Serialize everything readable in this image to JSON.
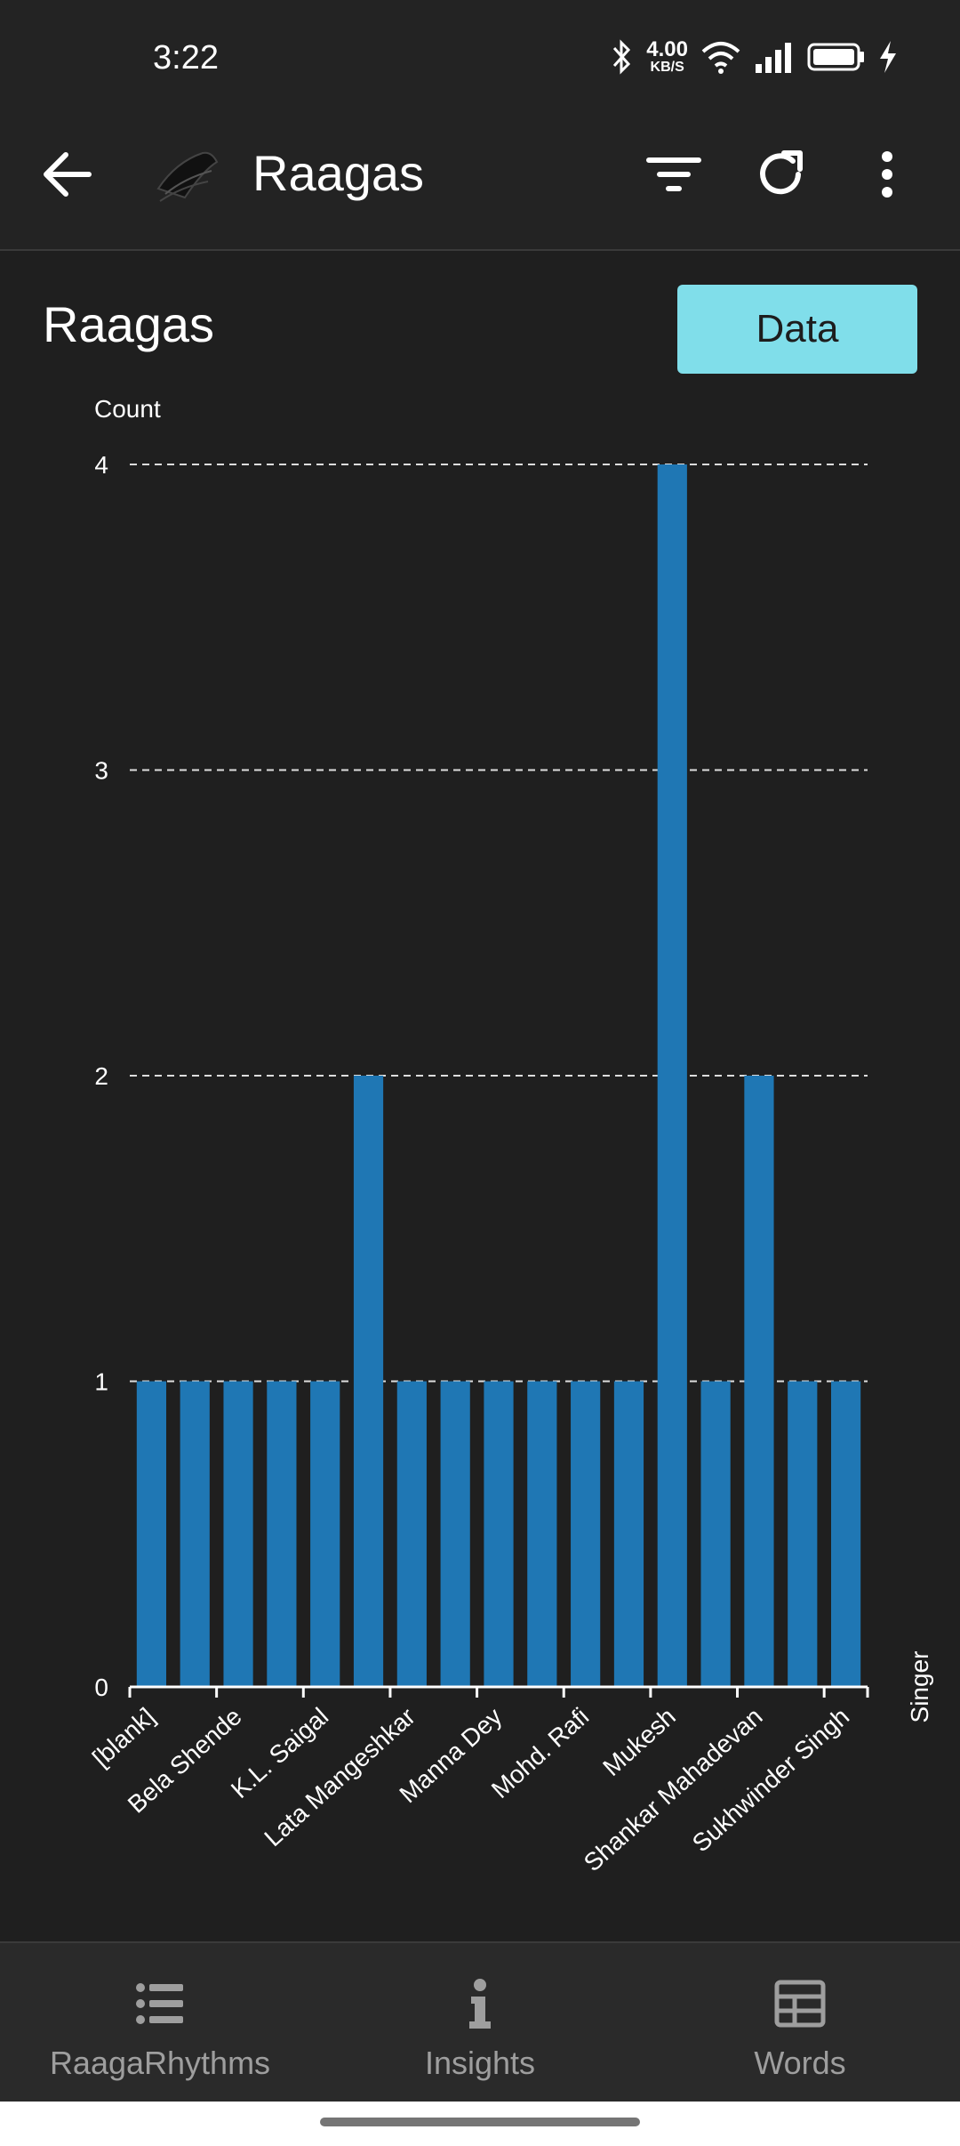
{
  "status_bar": {
    "time": "3:22",
    "net_speed_value": "4.00",
    "net_speed_unit": "KB/S",
    "icons": [
      "bluetooth-icon",
      "wifi-icon",
      "signal-icon",
      "battery-icon",
      "charging-icon"
    ]
  },
  "app_bar": {
    "title": "Raagas",
    "actions": [
      "filter-icon",
      "refresh-icon",
      "more-vert-icon"
    ]
  },
  "content": {
    "title": "Raagas",
    "data_button": "Data"
  },
  "chart_data": {
    "type": "bar",
    "categories": [
      "[blank]",
      "Bela Shende",
      "",
      "K.L. Saigal",
      "",
      "Lata Mangeshkar",
      "",
      "Manna Dey",
      "",
      "Mohd. Rafi",
      "",
      "Mukesh",
      "",
      "Shankar Mahadevan",
      "",
      "Sukhwinder Singh",
      ""
    ],
    "values": [
      1,
      1,
      1,
      1,
      1,
      2,
      1,
      1,
      1,
      1,
      1,
      1,
      4,
      1,
      2,
      1,
      1
    ],
    "tick_labels": [
      "[blank]",
      "Bela Shende",
      "K.L. Saigal",
      "Lata Mangeshkar",
      "Manna Dey",
      "Mohd. Rafi",
      "Mukesh",
      "Shankar Mahadevan",
      "Sukhwinder Singh"
    ],
    "ylabel": "Count",
    "xlabel": "Singer",
    "ylim": [
      0,
      4
    ],
    "yticks": [
      0,
      1,
      2,
      3,
      4
    ],
    "grid": true,
    "bar_color": "#1f77b4"
  },
  "bottom_nav": [
    {
      "label": "RaagaRhythms",
      "icon": "list-icon"
    },
    {
      "label": "Insights",
      "icon": "info-icon"
    },
    {
      "label": "Words",
      "icon": "table-icon"
    }
  ]
}
